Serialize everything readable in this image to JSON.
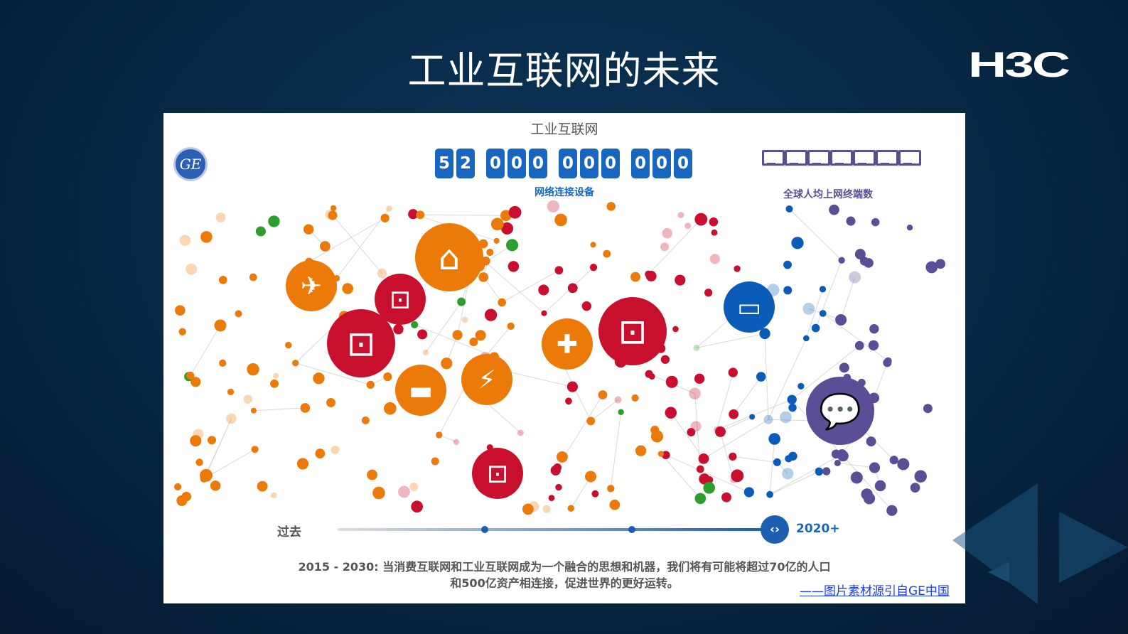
{
  "slide": {
    "title": "工业互联网的未来",
    "logo": "H3C",
    "source_link": "——图片素材源引自GE中国"
  },
  "infographic": {
    "title": "工业互联网",
    "ge_logo": "GE",
    "counter_digits": [
      "5",
      "2",
      " ",
      "0",
      "0",
      "0",
      " ",
      "0",
      "0",
      "0",
      " ",
      "0",
      "0",
      "0"
    ],
    "counter_label": "网络连接设备",
    "monitors_label": "全球人均上网终端数",
    "monitor_count": 7,
    "timeline": {
      "start_label": "过去",
      "end_label": "2020+",
      "position_percent": 100,
      "handle_icon": "chevron-left-right-icon"
    },
    "caption_line1": "2015 - 2030: 当消费互联网和工业互联网成为一个融合的思想和机器，我们将有可能将超过70亿的人口",
    "caption_line2": "和500亿资产相连接，促进世界的更好运转。",
    "colors": {
      "orange": "#ec7a08",
      "red": "#c8102e",
      "blue": "#0a5cb8",
      "purple": "#5b4d96",
      "green": "#2e9e2e",
      "counter_blue": "#1766c0"
    },
    "hubs": [
      {
        "icon": "airplane-icon",
        "color": "orange"
      },
      {
        "icon": "tower-icon",
        "color": "orange"
      },
      {
        "icon": "workflow-icon",
        "color": "red"
      },
      {
        "icon": "workflow-icon",
        "color": "red"
      },
      {
        "icon": "train-icon",
        "color": "orange"
      },
      {
        "icon": "lightning-icon",
        "color": "orange"
      },
      {
        "icon": "medical-plus-icon",
        "color": "orange"
      },
      {
        "icon": "workflow-icon",
        "color": "red"
      },
      {
        "icon": "workflow-icon",
        "color": "red"
      },
      {
        "icon": "devices-icon",
        "color": "blue"
      },
      {
        "icon": "chat-icon",
        "color": "purple"
      }
    ]
  }
}
